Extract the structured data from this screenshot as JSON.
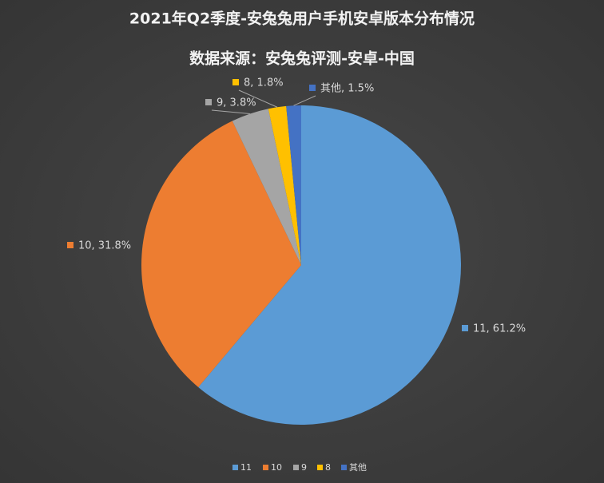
{
  "chart_data": {
    "type": "pie",
    "title": "2021年Q2季度-安兔兔用户手机安卓版本分布情况",
    "subtitle": "数据来源：安兔兔评测-安卓-中国",
    "categories": [
      "11",
      "10",
      "9",
      "8",
      "其他"
    ],
    "values": [
      61.2,
      31.8,
      3.8,
      1.8,
      1.5
    ],
    "value_labels": [
      "11, 61.2%",
      "10, 31.8%",
      "9, 3.8%",
      "8, 1.8%",
      "其他, 1.5%"
    ],
    "colors": [
      "#5b9bd5",
      "#ed7d31",
      "#a5a5a5",
      "#ffc000",
      "#4472c4"
    ],
    "legend": "bottom"
  }
}
